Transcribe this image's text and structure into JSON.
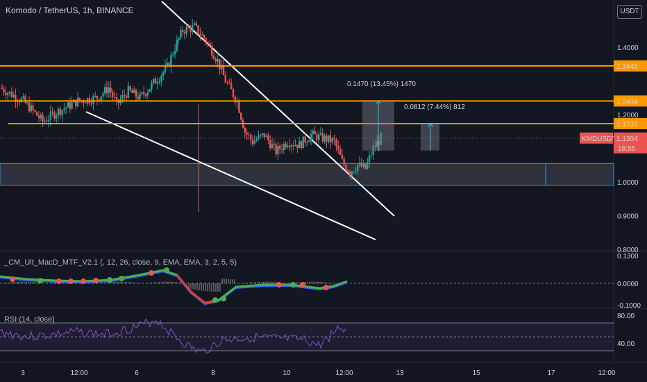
{
  "header": {
    "title": "Komodo / TetherUS, 1h, BINANCE",
    "currency": "USDT"
  },
  "ticker": {
    "symbol": "KMDUSDT",
    "price": "1.1304",
    "countdown": "18:55"
  },
  "levels": [
    {
      "label": "1.3445",
      "value": 1.3445
    },
    {
      "label": "1.2404",
      "value": 1.2404
    },
    {
      "label": "1.1733",
      "value": 1.1733
    }
  ],
  "measures": [
    {
      "label": "0.1470 (13.45%) 1470"
    },
    {
      "label": "0.0812 (7.44%) 812"
    }
  ],
  "macd": {
    "title": "_CM_Ult_MacD_MTF_V2.1 (, 12, 26, close, 9, EMA, EMA, 3, 2, 5, 5)",
    "axis": [
      "0.1300",
      "0.0000",
      "-0.1000"
    ]
  },
  "rsi": {
    "title": "RSI (14, close)",
    "axis": [
      "80.00",
      "40.00"
    ]
  },
  "colors": {
    "bg": "#131722",
    "up": "#26a69a",
    "down": "#ef5350",
    "level": "#ff9800",
    "zone": "#2196f3",
    "measure": "#2bbbd4",
    "rsi": "#7e57c2",
    "macd_fast": "#2962ff",
    "macd_signal": "#4caf50",
    "macd_signal_down": "#e53935"
  },
  "chart_data": {
    "type": "candlestick",
    "title": "Komodo / TetherUS, 1h, BINANCE",
    "ylim": [
      0.8,
      1.42
    ],
    "y_ticks": [
      1.4,
      1.3,
      1.2,
      1.1,
      1.0,
      0.9,
      0.8
    ],
    "y_tick_labels": [
      "1.4000",
      "",
      "1.2000",
      "",
      "1.0000",
      "0.9000",
      "0.8000"
    ],
    "x_tick_labels": [
      "3",
      "12:00",
      "6",
      "8",
      "10",
      "12:00",
      "13",
      "15",
      "17",
      "12:00"
    ],
    "price_path": [
      [
        0,
        1.28
      ],
      [
        6,
        1.24
      ],
      [
        11,
        1.18
      ],
      [
        15,
        1.21
      ],
      [
        20,
        1.24
      ],
      [
        25,
        1.25
      ],
      [
        28,
        1.28
      ],
      [
        30,
        1.23
      ],
      [
        33,
        1.27
      ],
      [
        36,
        1.25
      ],
      [
        40,
        1.3
      ],
      [
        43,
        1.34
      ],
      [
        45,
        1.4
      ],
      [
        47,
        1.45
      ],
      [
        50,
        1.46
      ],
      [
        53,
        1.42
      ],
      [
        56,
        1.36
      ],
      [
        58,
        1.3
      ],
      [
        61,
        1.24
      ],
      [
        63,
        1.15
      ],
      [
        65,
        1.12
      ],
      [
        68,
        1.14
      ],
      [
        71,
        1.09
      ],
      [
        74,
        1.12
      ],
      [
        77,
        1.11
      ],
      [
        80,
        1.14
      ],
      [
        83,
        1.13
      ],
      [
        86,
        1.12
      ],
      [
        88,
        1.06
      ],
      [
        90,
        1.03
      ],
      [
        92,
        1.05
      ],
      [
        94,
        1.04
      ],
      [
        96,
        1.1
      ],
      [
        98,
        1.13
      ]
    ],
    "horizontal_levels": [
      1.3445,
      1.2404,
      1.1733
    ],
    "zone": [
      0.99,
      1.055
    ],
    "last_price": 1.1304
  }
}
